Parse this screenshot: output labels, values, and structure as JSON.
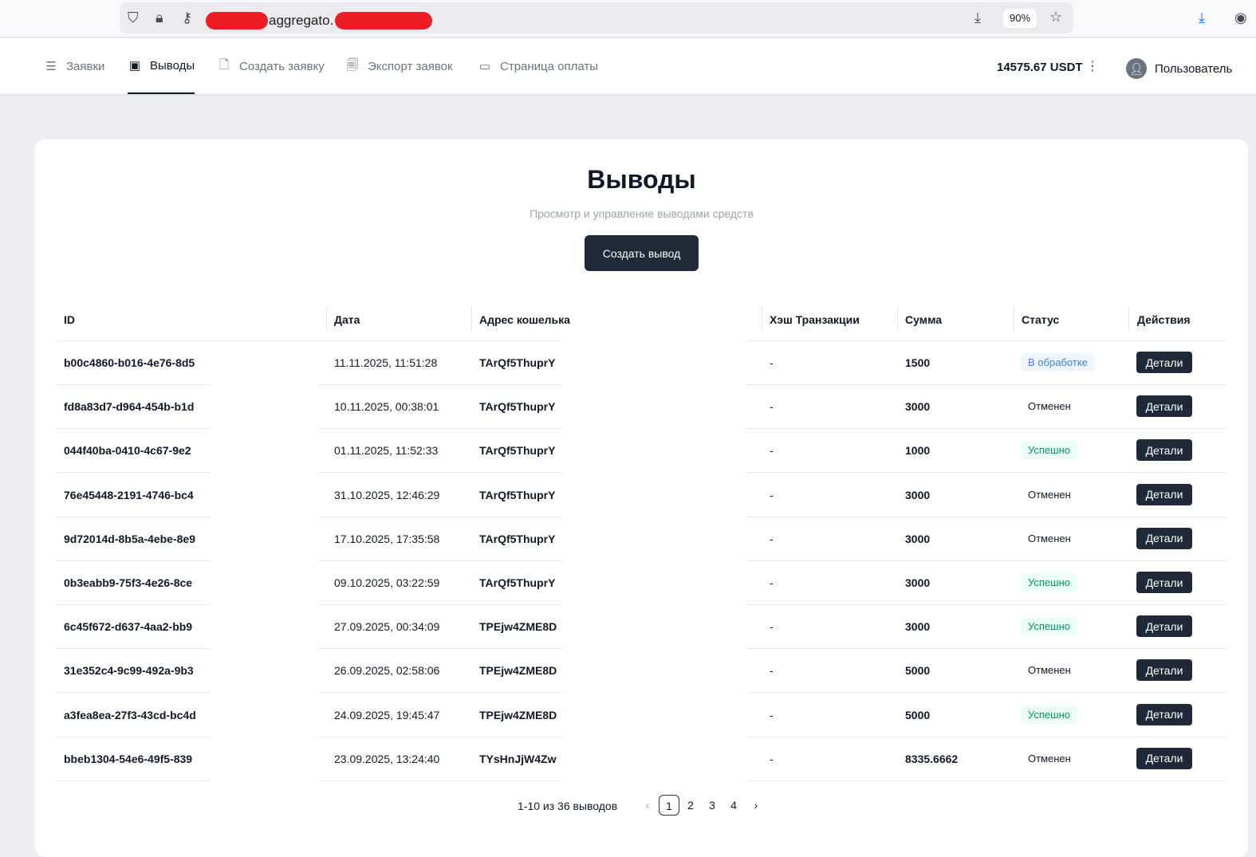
{
  "browser": {
    "url_visible": "aggregato.",
    "zoom": "90%"
  },
  "nav": {
    "items": [
      {
        "label": "Заявки",
        "icon": "list-icon"
      },
      {
        "label": "Выводы",
        "icon": "wallet-icon"
      },
      {
        "label": "Создать заявку",
        "icon": "file-plus-icon"
      },
      {
        "label": "Экспорт заявок",
        "icon": "file-search-icon"
      },
      {
        "label": "Страница оплаты",
        "icon": "card-icon"
      }
    ],
    "active": 1,
    "balance": "14575.67 USDT",
    "user": "Пользователь"
  },
  "page": {
    "title": "Выводы",
    "subtitle": "Просмотр и управление выводами средств",
    "create_label": "Создать вывод"
  },
  "table": {
    "headers": [
      "ID",
      "Дата",
      "Адрес кошелька",
      "Хэш Транзакции",
      "Сумма",
      "Статус",
      "Действия"
    ],
    "action_label": "Детали",
    "rows": [
      {
        "id": "b00c4860-b016-4e76-8d5",
        "date": "11.11.2025, 11:51:28",
        "wallet": "TArQf5ThuprY",
        "hash": "-",
        "amount": "1500",
        "status": "В обработке",
        "kind": "processing"
      },
      {
        "id": "fd8a83d7-d964-454b-b1d",
        "date": "10.11.2025, 00:38:01",
        "wallet": "TArQf5ThuprY",
        "hash": "-",
        "amount": "3000",
        "status": "Отменен",
        "kind": "cancelled"
      },
      {
        "id": "044f40ba-0410-4c67-9e2",
        "date": "01.11.2025, 11:52:33",
        "wallet": "TArQf5ThuprY",
        "hash": "-",
        "amount": "1000",
        "status": "Успешно",
        "kind": "success"
      },
      {
        "id": "76e45448-2191-4746-bc4",
        "date": "31.10.2025, 12:46:29",
        "wallet": "TArQf5ThuprY",
        "hash": "-",
        "amount": "3000",
        "status": "Отменен",
        "kind": "cancelled"
      },
      {
        "id": "9d72014d-8b5a-4ebe-8e9",
        "date": "17.10.2025, 17:35:58",
        "wallet": "TArQf5ThuprY",
        "hash": "-",
        "amount": "3000",
        "status": "Отменен",
        "kind": "cancelled"
      },
      {
        "id": "0b3eabb9-75f3-4e26-8ce",
        "date": "09.10.2025, 03:22:59",
        "wallet": "TArQf5ThuprY",
        "hash": "-",
        "amount": "3000",
        "status": "Успешно",
        "kind": "success"
      },
      {
        "id": "6c45f672-d637-4aa2-bb9",
        "date": "27.09.2025, 00:34:09",
        "wallet": "TPEjw4ZME8D",
        "hash": "-",
        "amount": "3000",
        "status": "Успешно",
        "kind": "success"
      },
      {
        "id": "31e352c4-9c99-492a-9b3",
        "date": "26.09.2025, 02:58:06",
        "wallet": "TPEjw4ZME8D",
        "hash": "-",
        "amount": "5000",
        "status": "Отменен",
        "kind": "cancelled"
      },
      {
        "id": "a3fea8ea-27f3-43cd-bc4d",
        "date": "24.09.2025, 19:45:47",
        "wallet": "TPEjw4ZME8D",
        "hash": "-",
        "amount": "5000",
        "status": "Успешно",
        "kind": "success"
      },
      {
        "id": "bbeb1304-54e6-49f5-839",
        "date": "23.09.2025, 13:24:40",
        "wallet": "TYsHnJjW4Zw",
        "hash": "-",
        "amount": "8335.6662",
        "status": "Отменен",
        "kind": "cancelled"
      }
    ]
  },
  "pagination": {
    "summary": "1-10 из 36 выводов",
    "pages": [
      "1",
      "2",
      "3",
      "4"
    ],
    "current": "1"
  },
  "colors": {
    "processing_bg": "#eff6ff",
    "processing_fg": "#3b82f6",
    "success_bg": "#ecfdf5",
    "success_fg": "#059669",
    "dark": "#1f2937"
  }
}
